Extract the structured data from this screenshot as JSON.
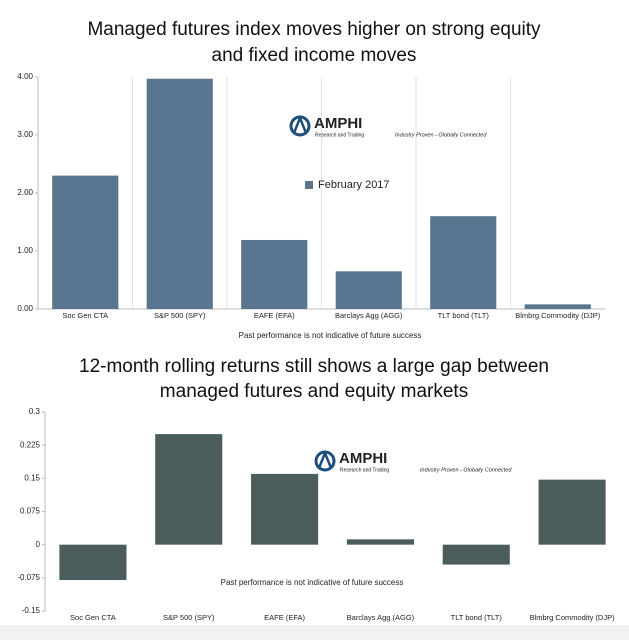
{
  "chart_data": [
    {
      "type": "bar",
      "title": [
        "Managed futures index moves higher on strong equity",
        "and fixed income moves"
      ],
      "categories": [
        "Soc Gen CTA",
        "S&P 500 (SPY)",
        "EAFE (EFA)",
        "Barclays Agg (AGG)",
        "TLT bond  (TLT)",
        "Blmbrg Commodity (DJP)"
      ],
      "series": [
        {
          "name": "February 2017",
          "color": "#5a7590",
          "values": [
            2.3,
            3.97,
            1.19,
            0.65,
            1.6,
            0.08
          ]
        }
      ],
      "ylim": [
        0,
        4
      ],
      "yticks": [
        {
          "value": 0,
          "label": "0.00"
        },
        {
          "value": 1,
          "label": "1.00"
        },
        {
          "value": 2,
          "label": "2.00"
        },
        {
          "value": 3,
          "label": "3.00"
        },
        {
          "value": 4,
          "label": "4.00"
        }
      ],
      "note": "Past performance is not indicative of future success",
      "logo": {
        "name": "AMPHI",
        "subtitle": "Research and Trading",
        "tagline": "Industry Proven - Globally Connected"
      }
    },
    {
      "type": "bar",
      "title": [
        "12-month rolling returns still shows a large gap between",
        "managed futures and equity markets"
      ],
      "categories": [
        "Soc Gen CTA",
        "S&P 500 (SPY)",
        "EAFE (EFA)",
        "Barclays Agg (AGG)",
        "TLT bond  (TLT)",
        "Blmbrg Commodity (DJP)"
      ],
      "values": [
        -0.08,
        0.25,
        0.16,
        0.012,
        -0.045,
        0.147
      ],
      "color": "#4a5c5c",
      "ylim": [
        -0.15,
        0.3
      ],
      "yticks": [
        -0.15,
        -0.075,
        0,
        0.075,
        0.15,
        0.225,
        0.3
      ],
      "note": "Past performance is not indicative of future success",
      "logo": {
        "name": "AMPHI",
        "subtitle": "Research and Trading",
        "tagline": "Industry Proven - Globally Connected"
      }
    }
  ]
}
